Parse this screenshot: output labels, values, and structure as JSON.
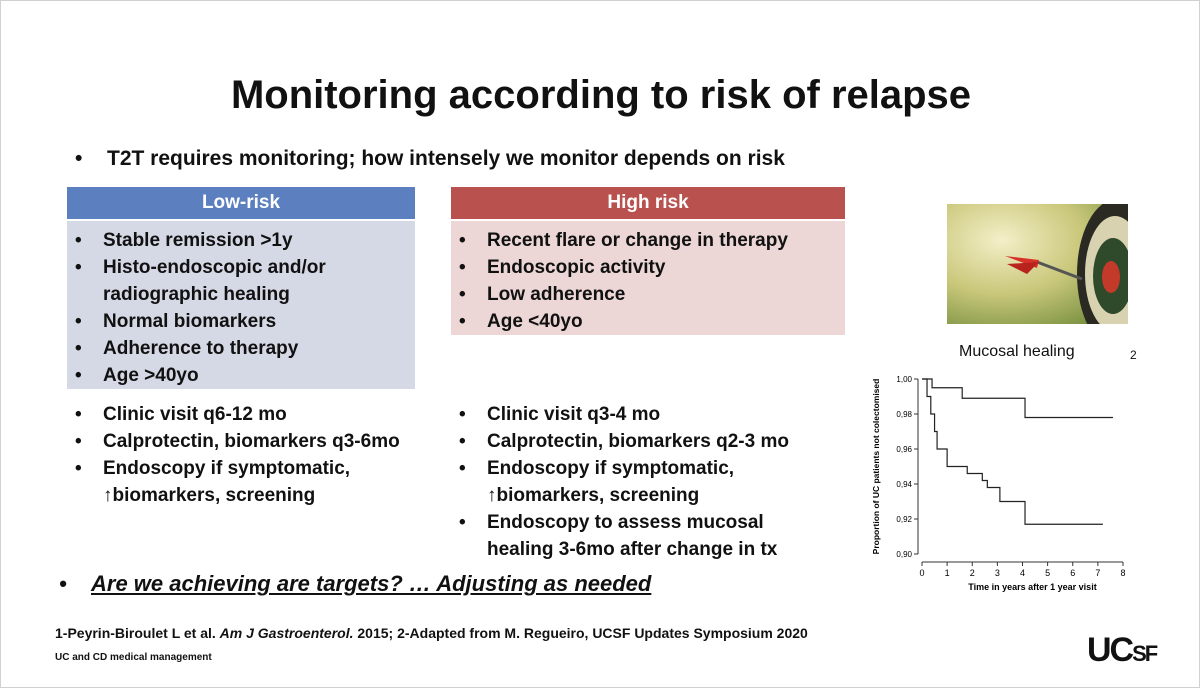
{
  "title": "Monitoring according to risk of relapse",
  "intro": "T2T requires monitoring; how intensely we monitor depends on risk",
  "low_risk": {
    "header": "Low-risk",
    "criteria": [
      "Stable remission >1y",
      "Histo-endoscopic and/or radiographic healing",
      "Normal biomarkers",
      "Adherence to therapy",
      "Age >40yo"
    ],
    "actions": [
      "Clinic visit q6-12 mo",
      "Calprotectin, biomarkers q3-6mo",
      "Endoscopy if symptomatic, ↑biomarkers, screening"
    ]
  },
  "high_risk": {
    "header": "High risk",
    "criteria": [
      "Recent flare or change in therapy",
      "Endoscopic activity",
      "Low adherence",
      "Age <40yo"
    ],
    "actions": [
      "Clinic visit q3-4 mo",
      "Calprotectin, biomarkers q2-3 mo",
      "Endoscopy if symptomatic, ↑biomarkers, screening",
      "Endoscopy to assess mucosal healing 3-6mo after change in tx"
    ]
  },
  "question": "Are we achieving are targets? … Adjusting as needed",
  "chart_caption": "Mucosal healing",
  "chart_ref": "2",
  "chart_data": {
    "type": "line",
    "x_label": "Time in years after 1 year visit",
    "y_label": "Proportion of UC patients not colectomised",
    "xlim": [
      0,
      8
    ],
    "xticks": [
      0,
      1,
      2,
      3,
      4,
      5,
      6,
      7,
      8
    ],
    "ylim": [
      0.9,
      1.0
    ],
    "yticks": [
      {
        "value": 0.9,
        "label": "0,90"
      },
      {
        "value": 0.92,
        "label": "0,92"
      },
      {
        "value": 0.94,
        "label": "0,94"
      },
      {
        "value": 0.96,
        "label": "0,96"
      },
      {
        "value": 0.98,
        "label": "0,98"
      },
      {
        "value": 1.0,
        "label": "1,00"
      }
    ],
    "series": [
      {
        "color": "#222222",
        "x": [
          0,
          0.4,
          0.4,
          1.6,
          1.6,
          4.1,
          4.1,
          7.6
        ],
        "values": [
          1.0,
          1.0,
          0.995,
          0.995,
          0.989,
          0.989,
          0.978,
          0.978
        ]
      },
      {
        "color": "#222222",
        "x": [
          0,
          0.2,
          0.2,
          0.35,
          0.35,
          0.5,
          0.5,
          0.6,
          0.6,
          1.0,
          1.0,
          1.8,
          1.8,
          2.4,
          2.4,
          2.6,
          2.6,
          3.1,
          3.1,
          4.1,
          4.1,
          7.2
        ],
        "values": [
          1.0,
          1.0,
          0.99,
          0.99,
          0.98,
          0.98,
          0.97,
          0.97,
          0.96,
          0.96,
          0.95,
          0.95,
          0.946,
          0.946,
          0.942,
          0.942,
          0.938,
          0.938,
          0.93,
          0.93,
          0.917,
          0.917
        ]
      }
    ]
  },
  "footer": {
    "ref_pre": "1-Peyrin-Biroulet L et al.",
    "ref_journal": "Am J Gastroenterol.",
    "ref_post": "2015; 2-Adapted from M. Regueiro, UCSF Updates Symposium 2020",
    "subtitle": "UC and CD medical management",
    "logo_uc": "UC",
    "logo_sf": "SF"
  }
}
